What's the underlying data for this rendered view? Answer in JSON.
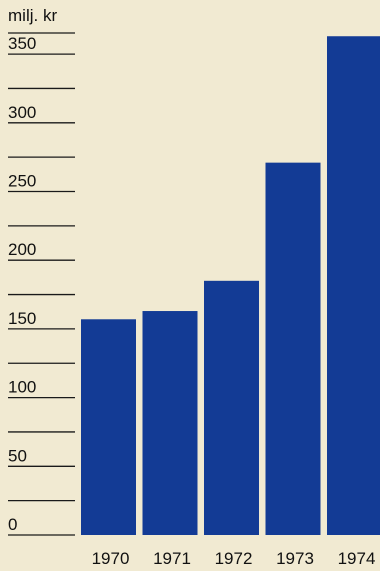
{
  "chart_data": {
    "type": "bar",
    "title": "",
    "xlabel": "",
    "ylabel": "milj. kr",
    "categories": [
      "1970",
      "1971",
      "1972",
      "1973",
      "1974"
    ],
    "values": [
      157,
      163,
      185,
      271,
      363
    ],
    "ylim": [
      0,
      380
    ],
    "y_ticks": [
      "0",
      "50",
      "100",
      "150",
      "200",
      "250",
      "300",
      "350"
    ],
    "grid": "ruled lines every 25 units on left",
    "legend": "none"
  },
  "colors": {
    "bar": "#133b95",
    "background": "#f1ead2"
  }
}
